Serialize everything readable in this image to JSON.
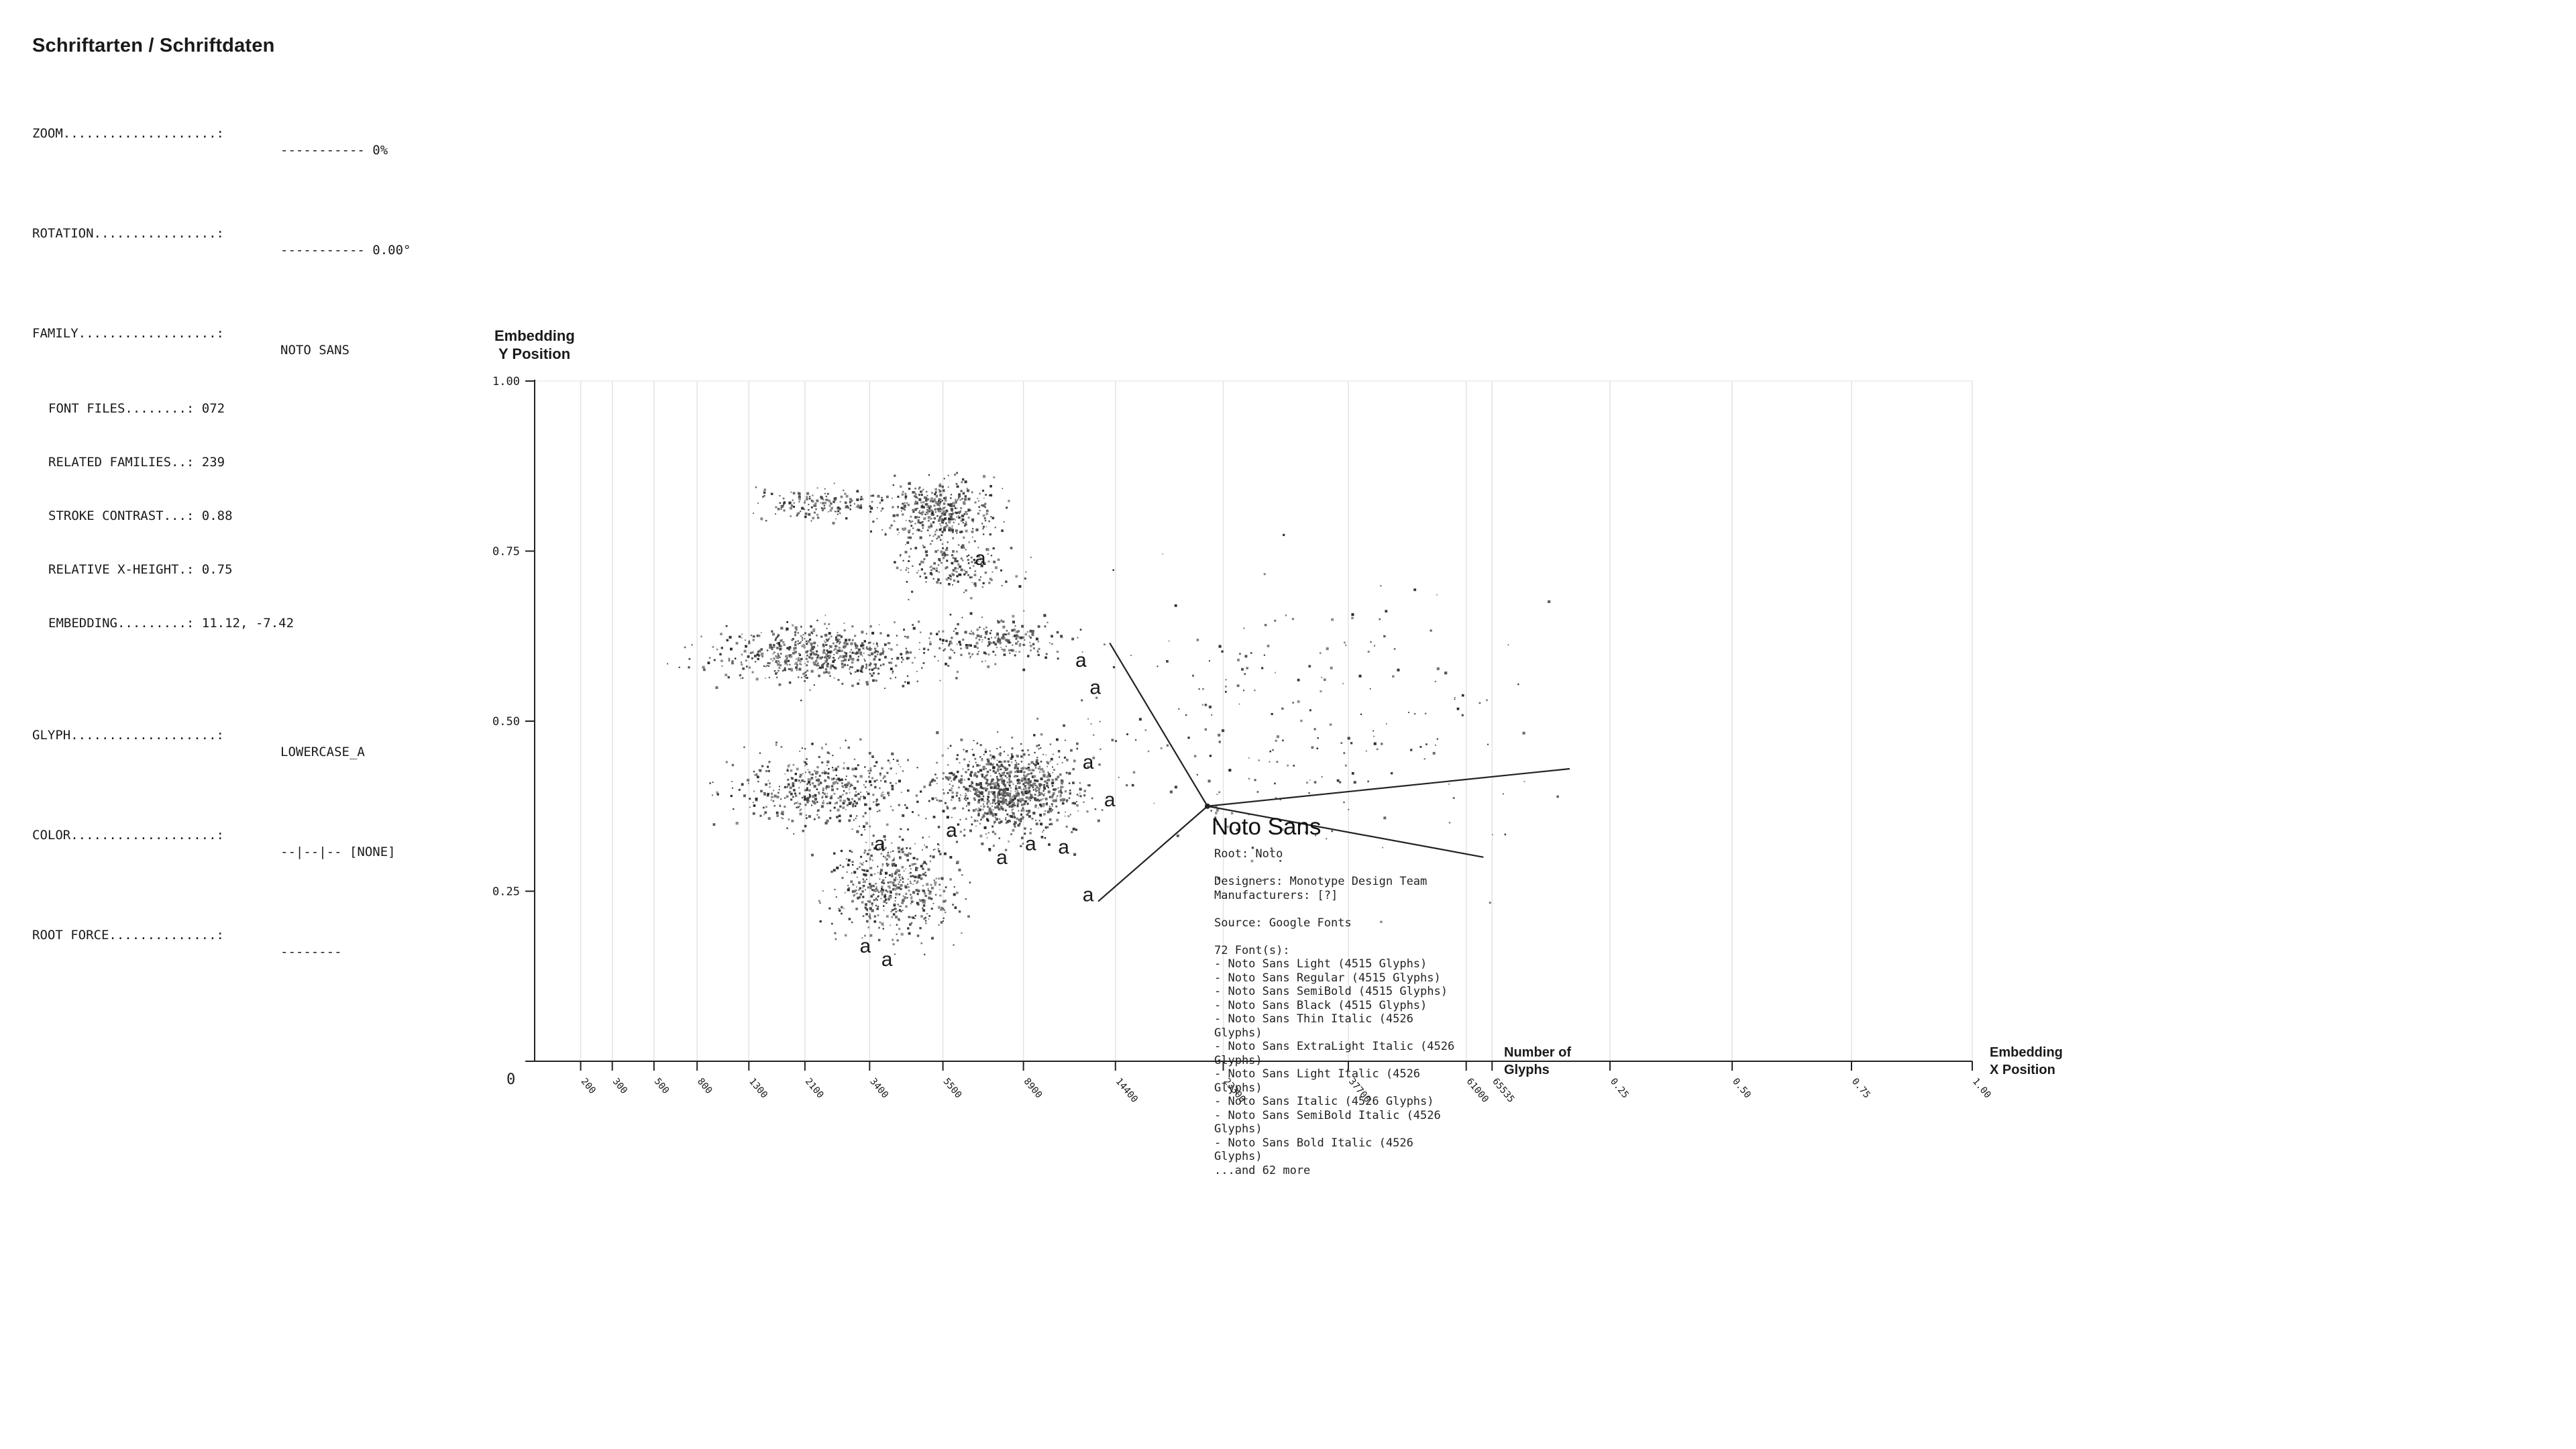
{
  "title": "Schriftarten / Schriftdaten",
  "controls": {
    "zoom": {
      "label": "ZOOM....................:",
      "value": "----------- 0%"
    },
    "rotation": {
      "label": "ROTATION................:",
      "value": "----------- 0.00°"
    },
    "family": {
      "label": "FAMILY..................:",
      "value": "NOTO SANS"
    },
    "family_details": [
      {
        "text": "FONT FILES........: 072"
      },
      {
        "text": "RELATED FAMILIES..: 239"
      },
      {
        "text": "STROKE CONTRAST...: 0.88"
      },
      {
        "text": "RELATIVE X-HEIGHT.: 0.75"
      },
      {
        "text": "EMBEDDING.........: 11.12, -7.42"
      }
    ],
    "glyph": {
      "label": "GLYPH...................:",
      "value": "LOWERCASE_A"
    },
    "color": {
      "label": "COLOR...................:",
      "value": "--|--|-- [NONE]"
    },
    "root_force": {
      "label": "ROOT FORCE..............:",
      "value": "--------"
    }
  },
  "info_panel": {
    "family_name": "Noto Sans",
    "root": "Root: Noto",
    "designers": "Designers: Monotype Design Team",
    "manufacturers": "Manufacturers: [?]",
    "source": "Source: Google Fonts",
    "fonts_count": "72 Font(s):",
    "fonts": [
      {
        "text": "- Noto Sans Light (4515 Glyphs)"
      },
      {
        "text": "- Noto Sans Regular (4515 Glyphs)"
      },
      {
        "text": "- Noto Sans SemiBold (4515 Glyphs)"
      },
      {
        "text": "- Noto Sans Black (4515 Glyphs)"
      },
      {
        "text": "- Noto Sans Thin Italic (4526 Glyphs)"
      },
      {
        "text": "- Noto Sans ExtraLight Italic (4526 Glyphs)"
      },
      {
        "text": "- Noto Sans Light Italic (4526 Glyphs)"
      },
      {
        "text": "- Noto Sans Italic (4526 Glyphs)"
      },
      {
        "text": "- Noto Sans SemiBold Italic (4526 Glyphs)"
      },
      {
        "text": "- Noto Sans Bold Italic (4526 Glyphs)"
      }
    ],
    "more": "...and 62 more"
  },
  "chart_data": {
    "type": "scatter",
    "ylabel_lines": [
      "Embedding",
      "Y Position"
    ],
    "xlabel_lines": [
      "Embedding",
      "X Position"
    ],
    "glyph_axis_label_lines": [
      "Number of",
      "Glyphs"
    ],
    "origin_label": "0",
    "ylim": [
      0,
      1
    ],
    "yticks": [
      {
        "value": 0.25,
        "label": "0.25"
      },
      {
        "value": 0.5,
        "label": "0.50"
      },
      {
        "value": 0.75,
        "label": "0.75"
      },
      {
        "value": 1.0,
        "label": "1.00"
      }
    ],
    "glyph_ticks": [
      {
        "label": "200",
        "frac": 0.032
      },
      {
        "label": "300",
        "frac": 0.054
      },
      {
        "label": "500",
        "frac": 0.083
      },
      {
        "label": "800",
        "frac": 0.113
      },
      {
        "label": "1300",
        "frac": 0.149
      },
      {
        "label": "2100",
        "frac": 0.188
      },
      {
        "label": "3400",
        "frac": 0.233
      },
      {
        "label": "5500",
        "frac": 0.284
      },
      {
        "label": "8900",
        "frac": 0.34
      },
      {
        "label": "14400",
        "frac": 0.404
      },
      {
        "label": "23300",
        "frac": 0.479
      },
      {
        "label": "37700",
        "frac": 0.566
      },
      {
        "label": "61000",
        "frac": 0.648
      },
      {
        "label": "65535",
        "frac": 0.666
      }
    ],
    "embedding_ticks": [
      {
        "label": "0.25",
        "frac": 0.748
      },
      {
        "label": "0.50",
        "frac": 0.833
      },
      {
        "label": "0.75",
        "frac": 0.916
      },
      {
        "label": "1.00",
        "frac": 1.0
      }
    ],
    "clusters": [
      {
        "cx": 0.28,
        "cy": 0.81,
        "sx": 0.03,
        "sy": 0.035,
        "n": 420
      },
      {
        "cx": 0.2,
        "cy": 0.82,
        "sx": 0.035,
        "sy": 0.02,
        "n": 160
      },
      {
        "cx": 0.29,
        "cy": 0.73,
        "sx": 0.035,
        "sy": 0.03,
        "n": 180
      },
      {
        "cx": 0.2,
        "cy": 0.6,
        "sx": 0.06,
        "sy": 0.035,
        "n": 600
      },
      {
        "cx": 0.32,
        "cy": 0.62,
        "sx": 0.04,
        "sy": 0.025,
        "n": 220
      },
      {
        "cx": 0.33,
        "cy": 0.4,
        "sx": 0.04,
        "sy": 0.055,
        "n": 950
      },
      {
        "cx": 0.2,
        "cy": 0.4,
        "sx": 0.05,
        "sy": 0.05,
        "n": 450
      },
      {
        "cx": 0.25,
        "cy": 0.26,
        "sx": 0.035,
        "sy": 0.06,
        "n": 520
      },
      {
        "cx": 0.52,
        "cy": 0.5,
        "sx": 0.14,
        "sy": 0.17,
        "n": 230
      }
    ],
    "highlighted_glyphs": [
      {
        "char": "a",
        "x": 0.31,
        "y": 0.73
      },
      {
        "char": "a",
        "x": 0.38,
        "y": 0.58
      },
      {
        "char": "a",
        "x": 0.39,
        "y": 0.54
      },
      {
        "char": "a",
        "x": 0.385,
        "y": 0.43
      },
      {
        "char": "a",
        "x": 0.4,
        "y": 0.375
      },
      {
        "char": "a",
        "x": 0.24,
        "y": 0.31
      },
      {
        "char": "a",
        "x": 0.29,
        "y": 0.33
      },
      {
        "char": "a",
        "x": 0.345,
        "y": 0.31
      },
      {
        "char": "a",
        "x": 0.368,
        "y": 0.305
      },
      {
        "char": "a",
        "x": 0.325,
        "y": 0.29
      },
      {
        "char": "a",
        "x": 0.385,
        "y": 0.235
      },
      {
        "char": "a",
        "x": 0.23,
        "y": 0.16
      },
      {
        "char": "a",
        "x": 0.245,
        "y": 0.14
      }
    ],
    "root_node": {
      "x": 0.468,
      "y": 0.375
    },
    "links": [
      {
        "x": 0.4,
        "y": 0.615
      },
      {
        "x": 0.392,
        "y": 0.235
      },
      {
        "x": 0.72,
        "y": 0.43
      },
      {
        "x": 0.66,
        "y": 0.3
      }
    ],
    "grid": "vertical"
  }
}
